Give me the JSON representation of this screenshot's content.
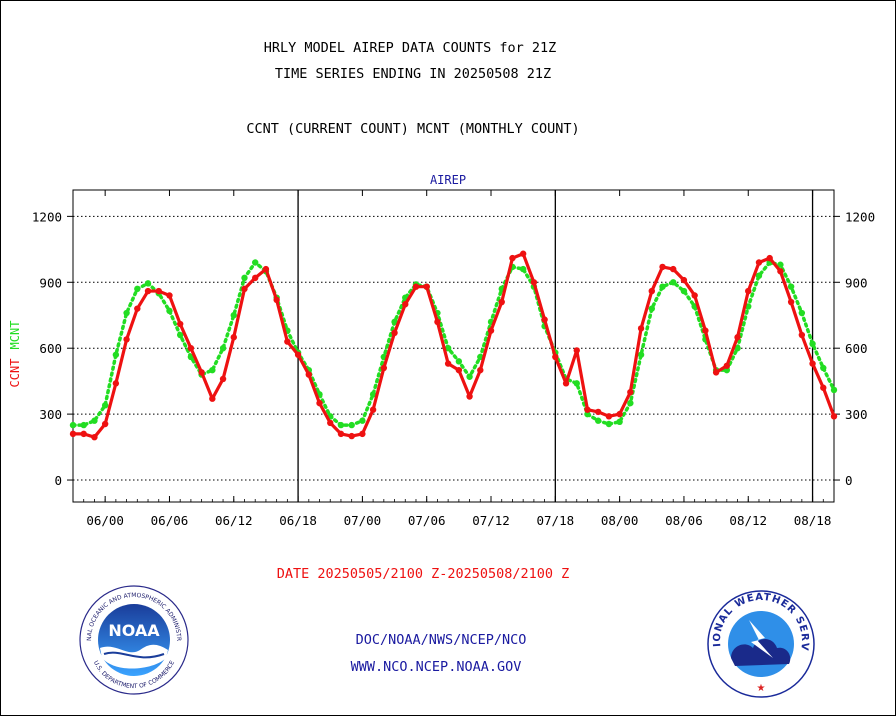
{
  "header": {
    "title_line1": "HRLY MODEL AIREP DATA COUNTS for 21Z",
    "title_line2": "TIME SERIES ENDING IN 20250508 21Z",
    "subtitle": "CCNT (CURRENT COUNT) MCNT (MONTHLY COUNT)"
  },
  "footer": {
    "date_range": "DATE 20250505/2100 Z-20250508/2100 Z",
    "org_path": "DOC/NOAA/NWS/NCEP/NCO",
    "website": "WWW.NCO.NCEP.NOAA.GOV",
    "noaa_logo_text": "NOAA",
    "noaa_ring_text": "NATIONAL OCEANIC AND ATMOSPHERIC ADMINISTRATION",
    "noaa_ring_text_bottom": "U.S. DEPARTMENT OF COMMERCE",
    "nws_ring_text": "NATIONAL WEATHER SERVICE"
  },
  "colors": {
    "ccnt": "#ee1111",
    "mcnt": "#22dd22",
    "title": "#000000",
    "panel_label": "#1a1aa0",
    "date": "#ee1111",
    "footer_link": "#1a1aa0"
  },
  "chart_data": {
    "type": "line",
    "panel_label": "AIREP",
    "ylabel_left_ccnt": "CCNT",
    "ylabel_left_mcnt": "MCNT",
    "ylim": [
      -100,
      1320
    ],
    "yticks": [
      0,
      300,
      600,
      900,
      1200
    ],
    "grid": true,
    "x_tick_labels": [
      "06/00",
      "06/06",
      "06/12",
      "06/18",
      "07/00",
      "07/06",
      "07/12",
      "07/18",
      "08/00",
      "08/06",
      "08/12",
      "08/18"
    ],
    "x_start_hour": 21,
    "day_boundaries_hours": [
      42,
      66,
      90
    ],
    "series": [
      {
        "name": "CCNT",
        "hours": [
          21,
          22,
          23,
          24,
          25,
          26,
          27,
          28,
          29,
          30,
          31,
          32,
          33,
          34,
          35,
          36,
          37,
          38,
          39,
          40,
          41,
          42,
          43,
          44,
          45,
          46,
          47,
          48,
          49,
          50,
          51,
          52,
          53,
          54,
          55,
          56,
          57,
          58,
          59,
          60,
          61,
          62,
          63,
          64,
          65,
          66,
          67,
          68,
          69,
          70,
          71,
          72,
          73,
          74,
          75,
          76,
          77,
          78,
          79,
          80,
          81,
          82,
          83,
          84,
          85,
          86,
          87,
          88,
          89,
          90,
          91,
          92
        ],
        "values": [
          210,
          210,
          195,
          255,
          440,
          640,
          780,
          860,
          860,
          840,
          710,
          600,
          490,
          370,
          460,
          650,
          870,
          920,
          960,
          820,
          630,
          570,
          480,
          350,
          260,
          210,
          200,
          210,
          320,
          510,
          670,
          800,
          880,
          880,
          720,
          530,
          500,
          380,
          500,
          680,
          810,
          1010,
          1030,
          900,
          730,
          560,
          440,
          590,
          320,
          310,
          290,
          300,
          400,
          690,
          860,
          970,
          960,
          910,
          840,
          680,
          490,
          520,
          650,
          860,
          990,
          1010,
          950,
          810,
          660,
          530,
          420,
          290
        ]
      },
      {
        "name": "MCNT",
        "hours": [
          21,
          22,
          23,
          24,
          25,
          26,
          27,
          28,
          29,
          30,
          31,
          32,
          33,
          34,
          35,
          36,
          37,
          38,
          39,
          40,
          41,
          42,
          43,
          44,
          45,
          46,
          47,
          48,
          49,
          50,
          51,
          52,
          53,
          54,
          55,
          56,
          57,
          58,
          59,
          60,
          61,
          62,
          63,
          64,
          65,
          66,
          67,
          68,
          69,
          70,
          71,
          72,
          73,
          74,
          75,
          76,
          77,
          78,
          79,
          80,
          81,
          82,
          83,
          84,
          85,
          86,
          87,
          88,
          89,
          90,
          91,
          92
        ],
        "values": [
          250,
          250,
          270,
          340,
          570,
          760,
          870,
          895,
          850,
          770,
          660,
          560,
          480,
          500,
          600,
          750,
          920,
          990,
          950,
          830,
          680,
          580,
          500,
          390,
          290,
          250,
          250,
          270,
          390,
          560,
          720,
          830,
          890,
          880,
          760,
          600,
          540,
          470,
          560,
          720,
          870,
          970,
          960,
          880,
          700,
          580,
          460,
          440,
          300,
          270,
          255,
          265,
          350,
          570,
          780,
          880,
          900,
          860,
          790,
          640,
          500,
          500,
          600,
          790,
          930,
          990,
          980,
          880,
          760,
          620,
          510,
          410
        ]
      }
    ]
  }
}
